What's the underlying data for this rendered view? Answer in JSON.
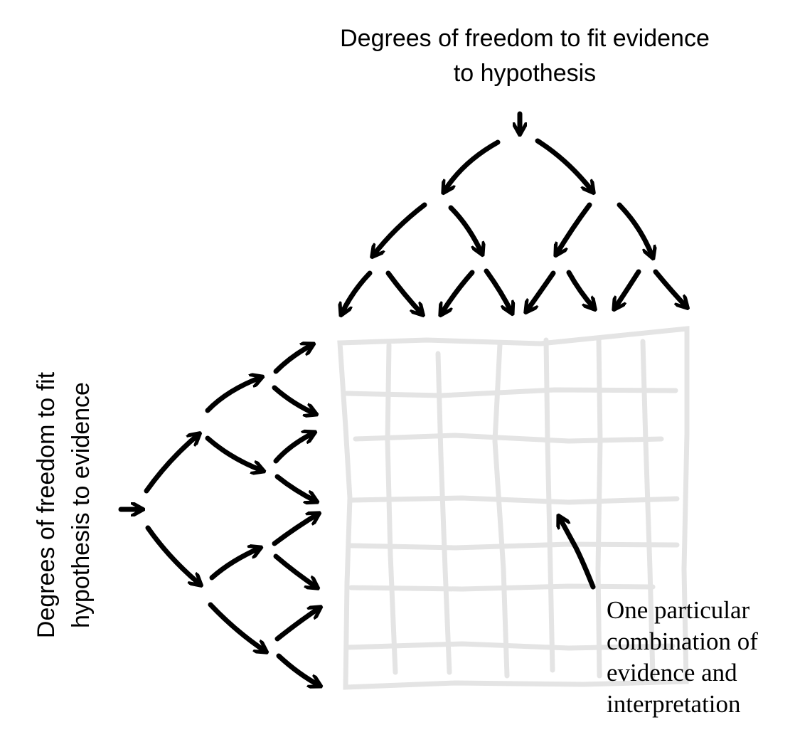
{
  "labels": {
    "top_line1": "Degrees of freedom to fit evidence",
    "top_line2": "to hypothesis",
    "left_line1": "Degrees of freedom to fit",
    "left_line2": "hypothesis to evidence",
    "note_line1": "One particular",
    "note_line2": "combination of",
    "note_line3": "evidence and",
    "note_line4": "interpretation"
  },
  "colors": {
    "ink": "#000000",
    "grid": "#e4e4e4"
  }
}
